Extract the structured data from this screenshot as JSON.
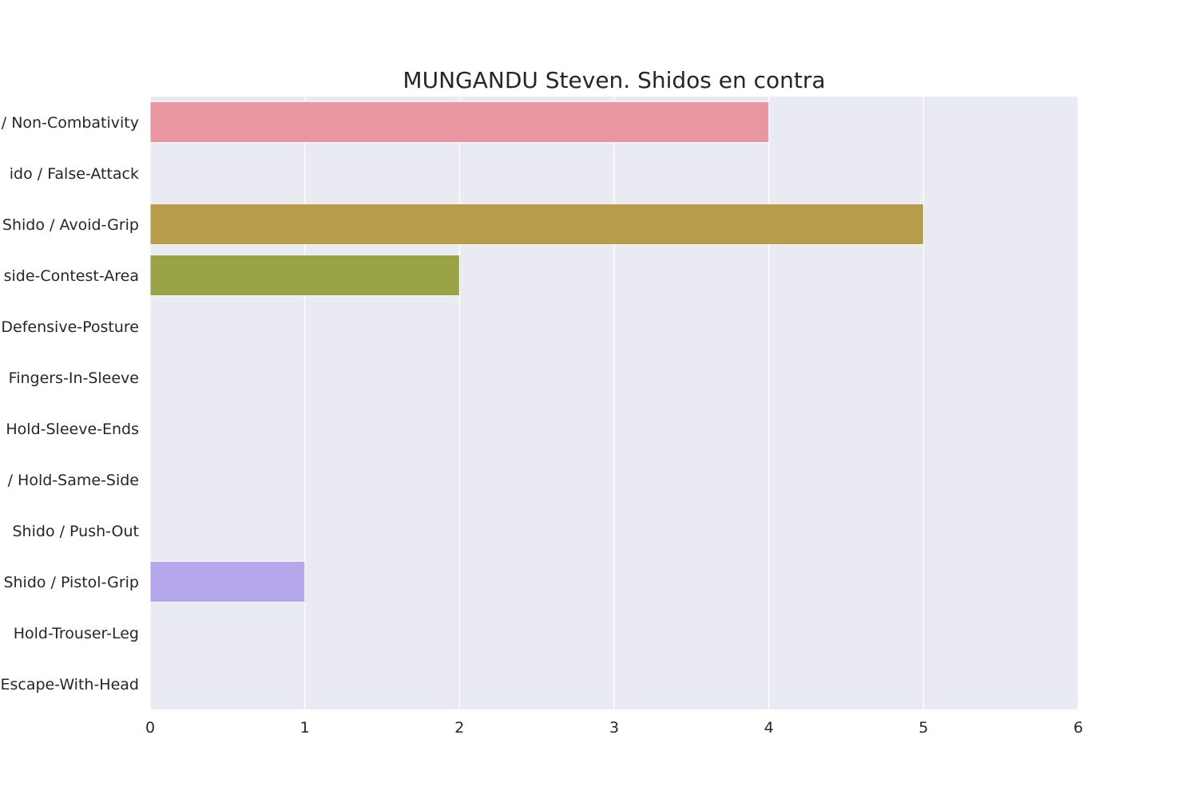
{
  "chart_data": {
    "type": "bar",
    "orientation": "horizontal",
    "title": "MUNGANDU Steven. Shidos en contra",
    "xlabel": "",
    "ylabel": "",
    "xlim": [
      0,
      6
    ],
    "x_ticks": [
      "0",
      "1",
      "2",
      "3",
      "4",
      "5",
      "6"
    ],
    "grid": true,
    "categories": [
      "/ Non-Combativity",
      "ido / False-Attack",
      "Shido / Avoid-Grip",
      "side-Contest-Area",
      "Defensive-Posture",
      "Fingers-In-Sleeve",
      "Hold-Sleeve-Ends",
      "/ Hold-Same-Side",
      "Shido / Push-Out",
      "Shido / Pistol-Grip",
      "Hold-Trouser-Leg",
      "Escape-With-Head"
    ],
    "values": [
      4,
      0,
      5,
      2,
      0,
      0,
      0,
      0,
      0,
      1,
      0,
      0
    ],
    "colors": [
      "#e8969f",
      "#d69c6a",
      "#b89c4a",
      "#99a345",
      "#6fb047",
      "#4cb28b",
      "#4eae9e",
      "#52abb0",
      "#5aa8c8",
      "#b6a6eb",
      "#d98fe0",
      "#e88fc0"
    ],
    "background": "#eaeaf2"
  }
}
